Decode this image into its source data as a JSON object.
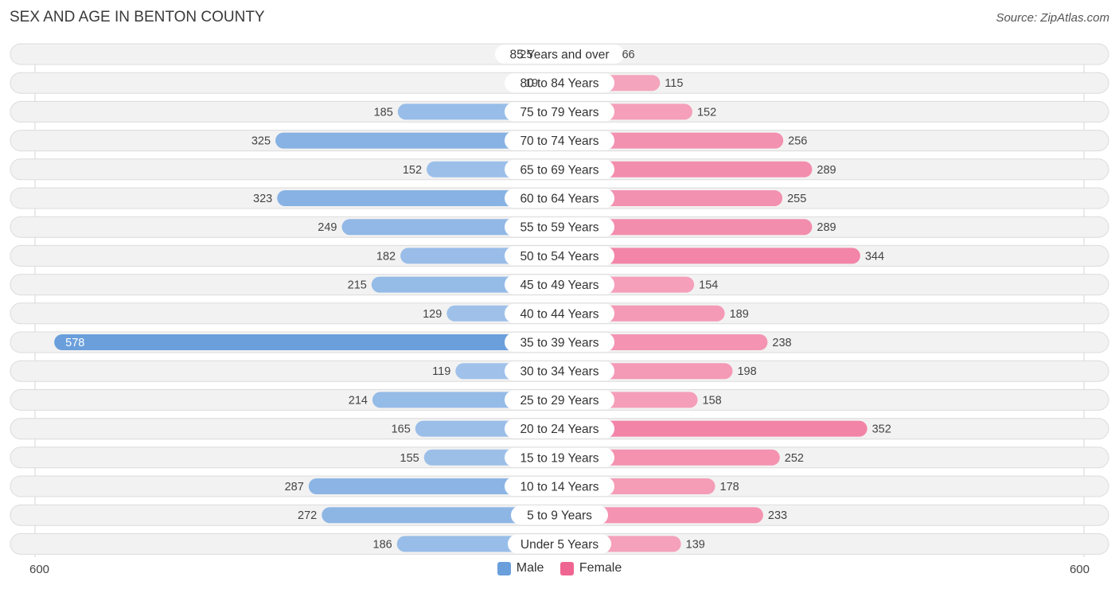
{
  "title": "SEX AND AGE IN BENTON COUNTY",
  "source": "Source: ZipAtlas.com",
  "colors": {
    "male_light": "#aecbed",
    "male_dark": "#6a9fdc",
    "female_light": "#f7b4c8",
    "female_dark": "#ef6592",
    "row_bg": "#f2f2f2",
    "row_border": "#dcdcdc"
  },
  "legend": {
    "male_label": "Male",
    "female_label": "Female"
  },
  "axis": {
    "left_label": "600",
    "right_label": "600"
  },
  "chart_data": {
    "type": "bar",
    "orientation": "horizontal-diverging",
    "xlim": [
      -600,
      600
    ],
    "categories": [
      "85 Years and over",
      "80 to 84 Years",
      "75 to 79 Years",
      "70 to 74 Years",
      "65 to 69 Years",
      "60 to 64 Years",
      "55 to 59 Years",
      "50 to 54 Years",
      "45 to 49 Years",
      "40 to 44 Years",
      "35 to 39 Years",
      "30 to 34 Years",
      "25 to 29 Years",
      "20 to 24 Years",
      "15 to 19 Years",
      "10 to 14 Years",
      "5 to 9 Years",
      "Under 5 Years"
    ],
    "series": [
      {
        "name": "Male",
        "values": [
          25,
          19,
          185,
          325,
          152,
          323,
          249,
          182,
          215,
          129,
          578,
          119,
          214,
          165,
          155,
          287,
          272,
          186
        ]
      },
      {
        "name": "Female",
        "values": [
          66,
          115,
          152,
          256,
          289,
          255,
          289,
          344,
          154,
          189,
          238,
          198,
          158,
          352,
          252,
          178,
          233,
          139
        ]
      }
    ],
    "legend_position": "bottom-center"
  }
}
